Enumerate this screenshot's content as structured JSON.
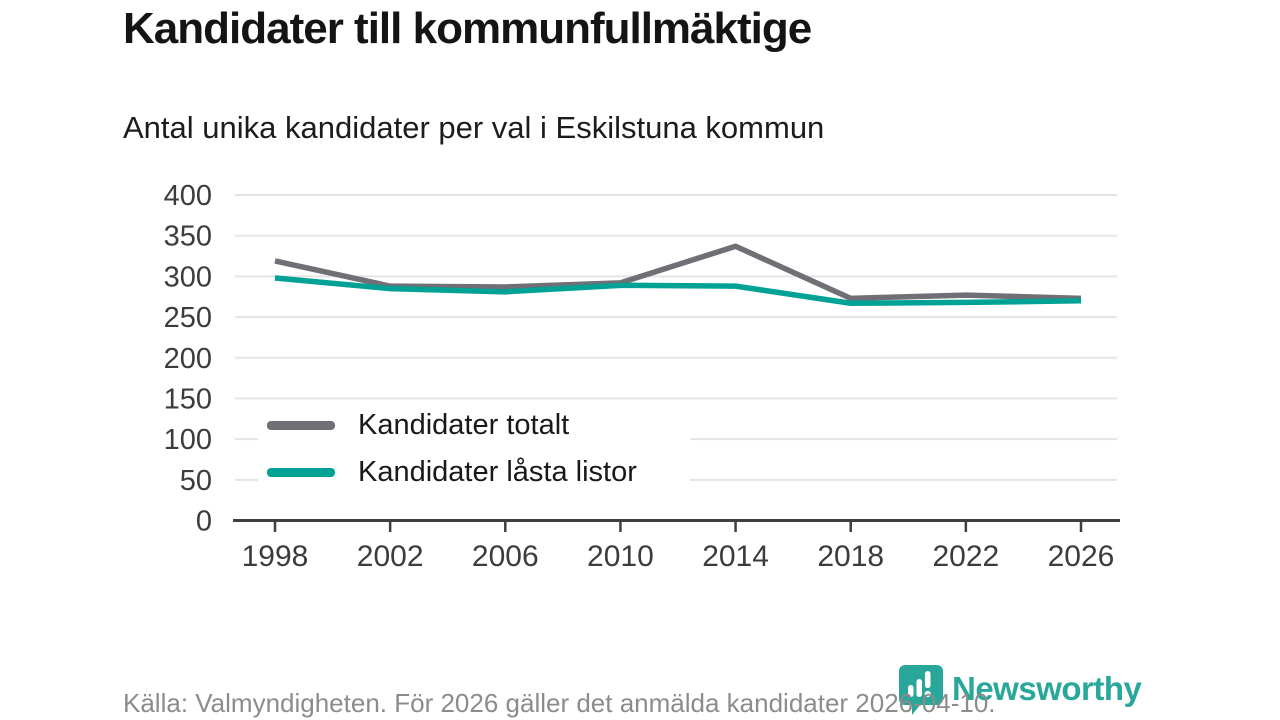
{
  "chart_data": {
    "type": "line",
    "title": "Kandidater till kommunfullmäktige",
    "subtitle": "Antal unika kandidater per val i Eskilstuna kommun",
    "x": [
      "1998",
      "2002",
      "2006",
      "2010",
      "2014",
      "2018",
      "2022",
      "2026"
    ],
    "series": [
      {
        "name": "Kandidater totalt",
        "color": "#6f6f75",
        "values": [
          319,
          288,
          287,
          292,
          337,
          273,
          277,
          273
        ]
      },
      {
        "name": "Kandidater låsta listor",
        "color": "#00a296",
        "values": [
          298,
          285,
          281,
          289,
          288,
          267,
          268,
          270
        ]
      }
    ],
    "ylim": [
      0,
      400
    ],
    "yticks": [
      0,
      50,
      100,
      150,
      200,
      250,
      300,
      350,
      400
    ],
    "grid": true,
    "legend_position": "inside-bottom-left"
  },
  "footer": {
    "source": "Källa: Valmyndigheten. För 2026 gäller det anmälda kandidater 2026-04-10.",
    "brand": "Newsworthy"
  },
  "colors": {
    "grid": "#e5e5e5",
    "axis": "#3f3f3f",
    "tick_text": "#3c3c3c",
    "brand_teal": "#2aa79b"
  }
}
